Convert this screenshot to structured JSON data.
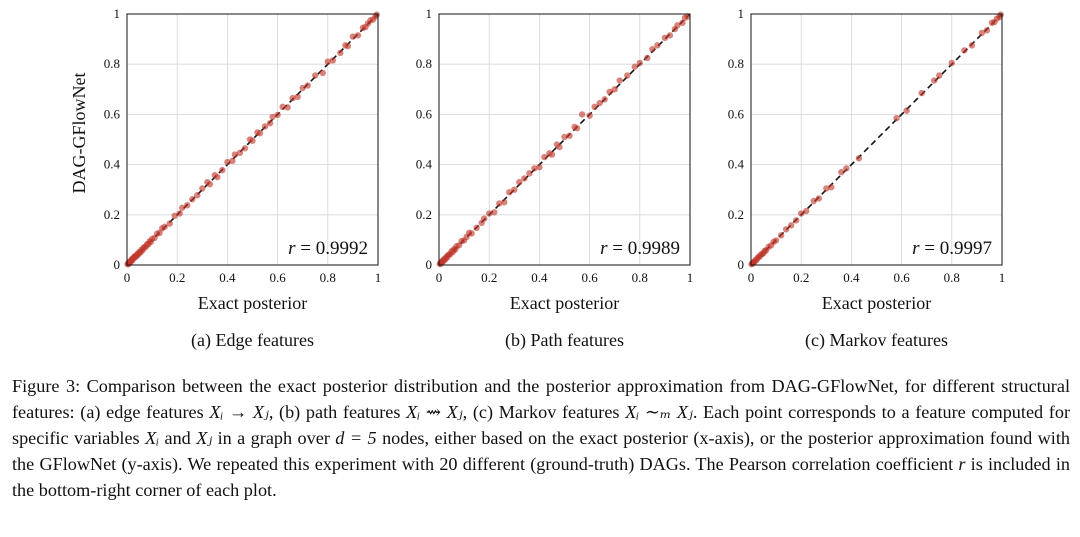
{
  "figure": {
    "ylabel": "DAG-GFlowNet",
    "xlabel": "Exact posterior",
    "caption_parts": {
      "p1": "Figure 3: Comparison between the exact posterior distribution and the posterior approximation from DAG-GFlowNet, for different structural features: (a) edge features ",
      "m1": "Xᵢ → Xⱼ",
      "p2": ", (b) path features ",
      "m2": "Xᵢ ⇝ Xⱼ",
      "p3": ", (c) Markov features ",
      "m3": "Xᵢ ∼ₘ Xⱼ",
      "p4": ". Each point corresponds to a feature computed for specific variables ",
      "m4": "Xᵢ",
      "p5": " and ",
      "m5": "Xⱼ",
      "p6": " in a graph over ",
      "m6": "d = 5",
      "p7": " nodes, either based on the exact posterior (x-axis), or the posterior approximation found with the GFlowNet (y-axis). We repeated this experiment with 20 different (ground-truth) DAGs. The Pearson correlation coefficient ",
      "m7": "r",
      "p8": " is included in the bottom-right corner of each plot."
    }
  },
  "chart_data": [
    {
      "type": "scatter",
      "subcaption": "(a) Edge features",
      "xlabel": "Exact posterior",
      "ylabel": "DAG-GFlowNet",
      "xlim": [
        0,
        1
      ],
      "ylim": [
        0,
        1
      ],
      "ticks": [
        "0",
        "0.2",
        "0.4",
        "0.6",
        "0.8",
        "1"
      ],
      "grid": true,
      "reference_line": "y = x (dashed)",
      "annotation": {
        "var": "r",
        "text": " = 0.9992"
      },
      "point_color": "#c0392b",
      "x": [
        0.002,
        0.005,
        0.008,
        0.01,
        0.012,
        0.015,
        0.018,
        0.02,
        0.022,
        0.025,
        0.028,
        0.03,
        0.033,
        0.036,
        0.04,
        0.043,
        0.046,
        0.05,
        0.054,
        0.058,
        0.062,
        0.066,
        0.07,
        0.075,
        0.08,
        0.085,
        0.09,
        0.095,
        0.1,
        0.11,
        0.12,
        0.13,
        0.14,
        0.15,
        0.17,
        0.19,
        0.21,
        0.22,
        0.24,
        0.26,
        0.28,
        0.3,
        0.32,
        0.33,
        0.35,
        0.36,
        0.38,
        0.4,
        0.42,
        0.43,
        0.45,
        0.47,
        0.49,
        0.5,
        0.52,
        0.53,
        0.55,
        0.57,
        0.58,
        0.6,
        0.62,
        0.64,
        0.66,
        0.68,
        0.7,
        0.72,
        0.75,
        0.78,
        0.8,
        0.82,
        0.85,
        0.87,
        0.88,
        0.9,
        0.92,
        0.94,
        0.95,
        0.96,
        0.97,
        0.98,
        0.99,
        0.995
      ],
      "y": [
        0.004,
        0.003,
        0.011,
        0.008,
        0.014,
        0.013,
        0.02,
        0.024,
        0.019,
        0.027,
        0.03,
        0.034,
        0.031,
        0.038,
        0.037,
        0.046,
        0.044,
        0.052,
        0.05,
        0.061,
        0.059,
        0.068,
        0.072,
        0.073,
        0.083,
        0.082,
        0.094,
        0.092,
        0.104,
        0.108,
        0.125,
        0.128,
        0.146,
        0.152,
        0.165,
        0.196,
        0.205,
        0.228,
        0.238,
        0.262,
        0.278,
        0.305,
        0.33,
        0.322,
        0.358,
        0.35,
        0.378,
        0.41,
        0.415,
        0.44,
        0.447,
        0.465,
        0.5,
        0.495,
        0.528,
        0.525,
        0.552,
        0.565,
        0.59,
        0.598,
        0.63,
        0.628,
        0.665,
        0.67,
        0.705,
        0.715,
        0.755,
        0.765,
        0.81,
        0.815,
        0.845,
        0.875,
        0.872,
        0.91,
        0.915,
        0.945,
        0.948,
        0.962,
        0.975,
        0.978,
        0.99,
        0.997
      ]
    },
    {
      "type": "scatter",
      "subcaption": "(b) Path features",
      "xlabel": "Exact posterior",
      "xlim": [
        0,
        1
      ],
      "ylim": [
        0,
        1
      ],
      "ticks": [
        "0",
        "0.2",
        "0.4",
        "0.6",
        "0.8",
        "1"
      ],
      "grid": true,
      "reference_line": "y = x (dashed)",
      "annotation": {
        "var": "r",
        "text": " = 0.9989"
      },
      "point_color": "#c0392b",
      "x": [
        0.003,
        0.006,
        0.009,
        0.012,
        0.015,
        0.018,
        0.021,
        0.025,
        0.028,
        0.032,
        0.035,
        0.04,
        0.045,
        0.05,
        0.055,
        0.06,
        0.065,
        0.07,
        0.08,
        0.09,
        0.1,
        0.11,
        0.12,
        0.13,
        0.15,
        0.17,
        0.18,
        0.2,
        0.22,
        0.24,
        0.26,
        0.28,
        0.3,
        0.32,
        0.34,
        0.36,
        0.38,
        0.4,
        0.42,
        0.44,
        0.45,
        0.47,
        0.48,
        0.5,
        0.52,
        0.54,
        0.55,
        0.57,
        0.6,
        0.62,
        0.64,
        0.66,
        0.68,
        0.7,
        0.72,
        0.75,
        0.78,
        0.8,
        0.83,
        0.85,
        0.87,
        0.9,
        0.92,
        0.94,
        0.95,
        0.97,
        0.98,
        0.99
      ],
      "y": [
        0.005,
        0.004,
        0.012,
        0.01,
        0.018,
        0.016,
        0.024,
        0.022,
        0.031,
        0.03,
        0.038,
        0.042,
        0.043,
        0.055,
        0.052,
        0.063,
        0.062,
        0.075,
        0.078,
        0.095,
        0.098,
        0.112,
        0.128,
        0.126,
        0.148,
        0.168,
        0.185,
        0.205,
        0.21,
        0.245,
        0.25,
        0.29,
        0.3,
        0.33,
        0.345,
        0.365,
        0.385,
        0.39,
        0.43,
        0.445,
        0.44,
        0.48,
        0.47,
        0.51,
        0.515,
        0.55,
        0.545,
        0.6,
        0.595,
        0.63,
        0.645,
        0.66,
        0.69,
        0.7,
        0.735,
        0.755,
        0.79,
        0.805,
        0.825,
        0.86,
        0.875,
        0.905,
        0.915,
        0.94,
        0.955,
        0.965,
        0.985,
        0.99
      ]
    },
    {
      "type": "scatter",
      "subcaption": "(c) Markov features",
      "xlabel": "Exact posterior",
      "xlim": [
        0,
        1
      ],
      "ylim": [
        0,
        1
      ],
      "ticks": [
        "0",
        "0.2",
        "0.4",
        "0.6",
        "0.8",
        "1"
      ],
      "grid": true,
      "reference_line": "y = x (dashed)",
      "annotation": {
        "var": "r",
        "text": " = 0.9997"
      },
      "point_color": "#c0392b",
      "x": [
        0.002,
        0.005,
        0.008,
        0.011,
        0.014,
        0.018,
        0.022,
        0.026,
        0.03,
        0.035,
        0.04,
        0.045,
        0.05,
        0.055,
        0.06,
        0.07,
        0.08,
        0.09,
        0.1,
        0.12,
        0.14,
        0.16,
        0.18,
        0.2,
        0.22,
        0.25,
        0.27,
        0.3,
        0.32,
        0.36,
        0.38,
        0.43,
        0.58,
        0.62,
        0.68,
        0.73,
        0.75,
        0.8,
        0.85,
        0.88,
        0.92,
        0.94,
        0.96,
        0.97,
        0.98,
        0.99,
        0.995
      ],
      "y": [
        0.003,
        0.006,
        0.007,
        0.012,
        0.013,
        0.019,
        0.021,
        0.027,
        0.032,
        0.034,
        0.042,
        0.044,
        0.048,
        0.057,
        0.058,
        0.072,
        0.078,
        0.092,
        0.098,
        0.118,
        0.142,
        0.158,
        0.178,
        0.205,
        0.215,
        0.255,
        0.265,
        0.305,
        0.31,
        0.37,
        0.385,
        0.425,
        0.585,
        0.615,
        0.685,
        0.735,
        0.755,
        0.805,
        0.855,
        0.875,
        0.925,
        0.935,
        0.965,
        0.968,
        0.982,
        0.988,
        0.997
      ]
    }
  ]
}
